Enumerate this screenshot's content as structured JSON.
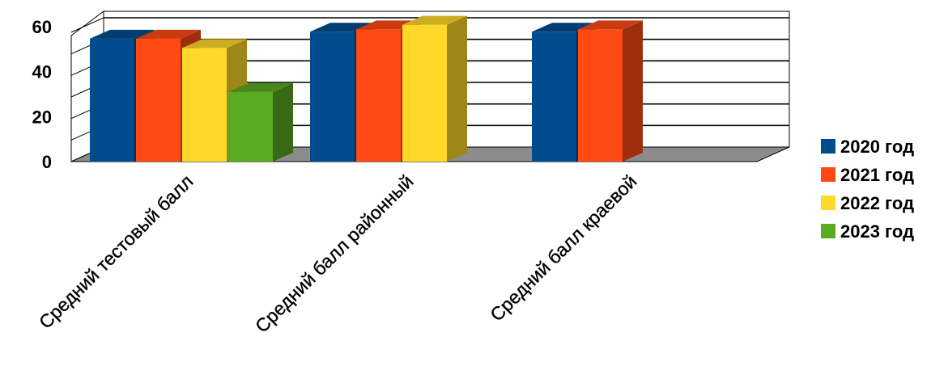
{
  "chart_data": {
    "type": "bar",
    "categories": [
      "Средний тестовый балл",
      "Средний балл районный",
      "Средний балл краевой"
    ],
    "series": [
      {
        "name": "2020 год",
        "values": [
          53,
          56,
          56
        ]
      },
      {
        "name": "2021 год",
        "values": [
          53,
          57,
          57
        ]
      },
      {
        "name": "2022 год",
        "values": [
          49,
          59,
          null
        ]
      },
      {
        "name": "2023 год",
        "values": [
          30,
          null,
          null
        ]
      }
    ],
    "ylim": [
      0,
      60
    ],
    "yticks": [
      0,
      20,
      40,
      60
    ],
    "grid": true,
    "legend_position": "right",
    "style": "3d-clustered"
  },
  "colors": {
    "series": [
      "#004C8C",
      "#FF4A14",
      "#FFD829",
      "#5AAA22"
    ],
    "floor": "#8C8C8C",
    "grid": "#000000"
  }
}
